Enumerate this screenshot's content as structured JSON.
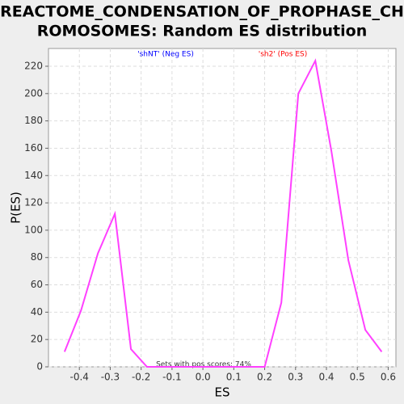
{
  "chart_data": {
    "type": "line",
    "title_lines": [
      "REACTOME_CONDENSATION_OF_PROPHASE_CH",
      "ROMOSOMES: Random ES distribution"
    ],
    "xlabel": "ES",
    "ylabel": "P(ES)",
    "legend": [
      {
        "text": "'shNT' (Neg ES)",
        "color": "#0000ff"
      },
      {
        "text": "'sh2' (Pos ES)",
        "color": "#ff0000"
      }
    ],
    "annotation": "Sets with pos scores: 74%",
    "x": [
      -0.448,
      -0.395,
      -0.34,
      -0.285,
      -0.233,
      -0.181,
      -0.128,
      -0.074,
      -0.021,
      0.033,
      0.086,
      0.14,
      0.2,
      0.254,
      0.309,
      0.364,
      0.416,
      0.471,
      0.526,
      0.579
    ],
    "series": [
      {
        "color": "#ff40ff",
        "values": [
          11,
          41,
          83,
          112,
          13,
          0,
          0,
          0,
          0,
          0,
          0,
          0,
          0,
          47,
          200,
          224,
          158,
          78,
          27,
          11
        ]
      }
    ],
    "xlim": [
      -0.5,
      0.625
    ],
    "ylim": [
      0,
      233
    ],
    "xticks": [
      -0.4,
      -0.3,
      -0.2,
      -0.1,
      0.0,
      0.1,
      0.2,
      0.3,
      0.4,
      0.5,
      0.6
    ],
    "yticks": [
      0,
      20,
      40,
      60,
      80,
      100,
      120,
      140,
      160,
      180,
      200,
      220
    ],
    "grid": true
  }
}
